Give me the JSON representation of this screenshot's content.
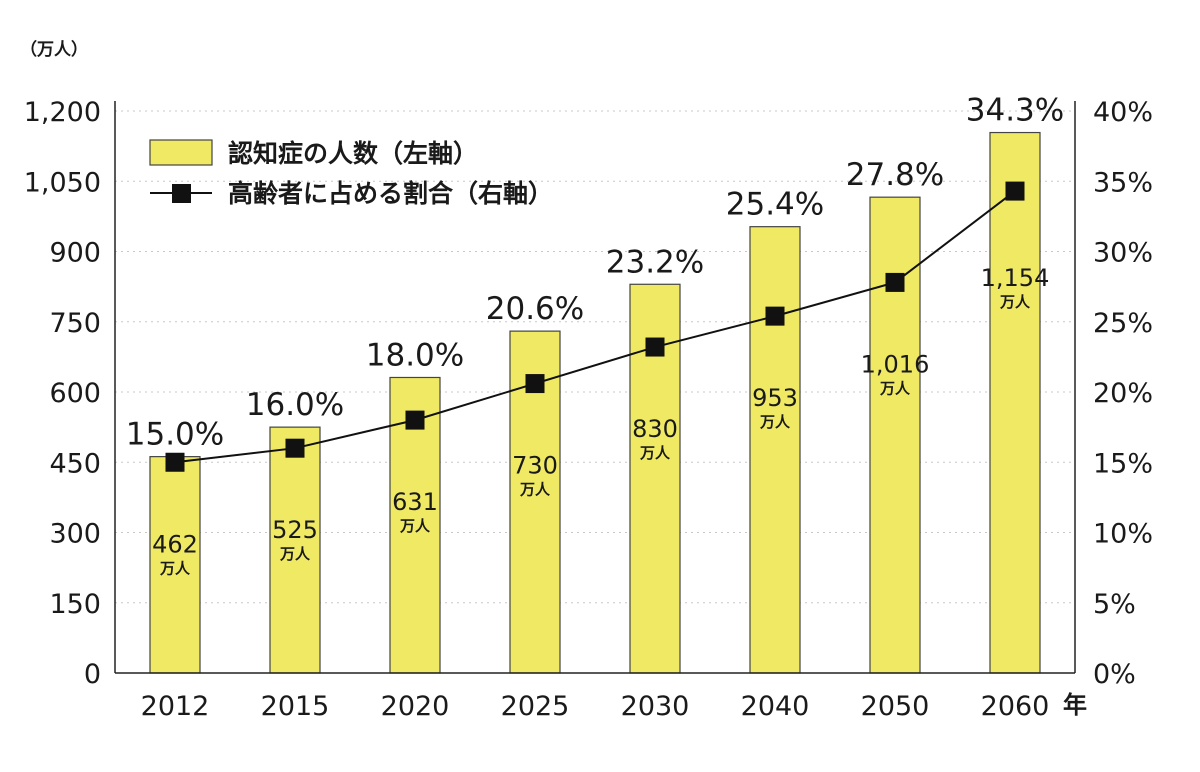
{
  "chart_data": {
    "type": "bar",
    "categories": [
      "2012",
      "2015",
      "2020",
      "2025",
      "2030",
      "2040",
      "2050",
      "2060"
    ],
    "x_unit": "年",
    "series": [
      {
        "name": "認知症の人数（左軸）",
        "kind": "bar",
        "axis": "left",
        "values": [
          462,
          525,
          631,
          730,
          830,
          953,
          1016,
          1154
        ],
        "labels": [
          "462",
          "525",
          "631",
          "730",
          "830",
          "953",
          "1,016",
          "1,154"
        ],
        "unit_label": "万人",
        "color": "#f0e964"
      },
      {
        "name": "高齢者に占める割合（右軸）",
        "kind": "line",
        "axis": "right",
        "values": [
          15.0,
          16.0,
          18.0,
          20.6,
          23.2,
          25.4,
          27.8,
          34.3
        ],
        "labels": [
          "15.0%",
          "16.0%",
          "18.0%",
          "20.6%",
          "23.2%",
          "25.4%",
          "27.8%",
          "34.3%"
        ],
        "color": "#111111"
      }
    ],
    "ylabel": "（万人）",
    "ylim": [
      0,
      1200
    ],
    "yticks": [
      0,
      150,
      300,
      450,
      600,
      750,
      900,
      1050,
      1200
    ],
    "ytick_labels": [
      "0",
      "150",
      "300",
      "450",
      "600",
      "750",
      "900",
      "1,050",
      "1,200"
    ],
    "y2lim": [
      0,
      40
    ],
    "y2ticks": [
      0,
      5,
      10,
      15,
      20,
      25,
      30,
      35,
      40
    ],
    "y2tick_labels": [
      "0%",
      "5%",
      "10%",
      "15%",
      "20%",
      "25%",
      "30%",
      "35%",
      "40%"
    ],
    "legend_position": "top-left",
    "grid": "horizontal dotted"
  }
}
